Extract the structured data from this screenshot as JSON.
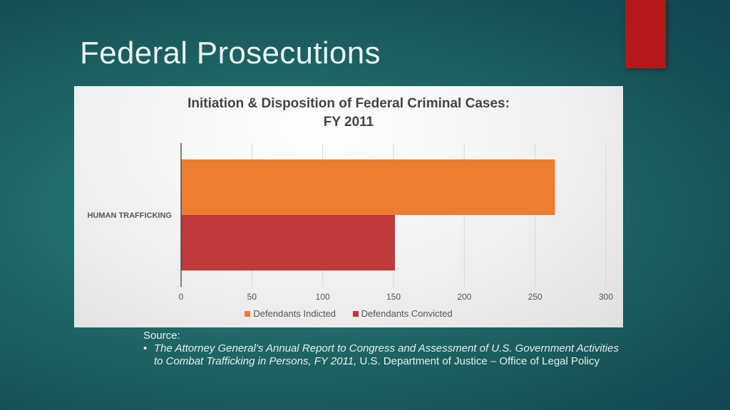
{
  "slide": {
    "title": "Federal Prosecutions",
    "accent_color": "#b4191a"
  },
  "chart_data": {
    "type": "bar",
    "orientation": "horizontal",
    "title_lines": [
      "Initiation & Disposition of Federal Criminal Cases:",
      "FY 2011"
    ],
    "categories": [
      "HUMAN TRAFFICKING"
    ],
    "series": [
      {
        "name": "Defendants Indicted",
        "values": [
          264
        ],
        "color": "#ed7d31"
      },
      {
        "name": "Defendants Convicted",
        "values": [
          151
        ],
        "color": "#c0393b"
      }
    ],
    "xlim": [
      0,
      300
    ],
    "xticks": [
      0,
      50,
      100,
      150,
      200,
      250,
      300
    ],
    "grid": true,
    "legend_position": "bottom"
  },
  "source": {
    "label": "Source:",
    "bullet": "•",
    "title_italic": "The Attorney General’s Annual Report to Congress and Assessment of U.S. Government Activities to Combat Trafficking in Persons, FY 2011,",
    "rest": " U.S. Department of Justice – Office of Legal Policy"
  }
}
